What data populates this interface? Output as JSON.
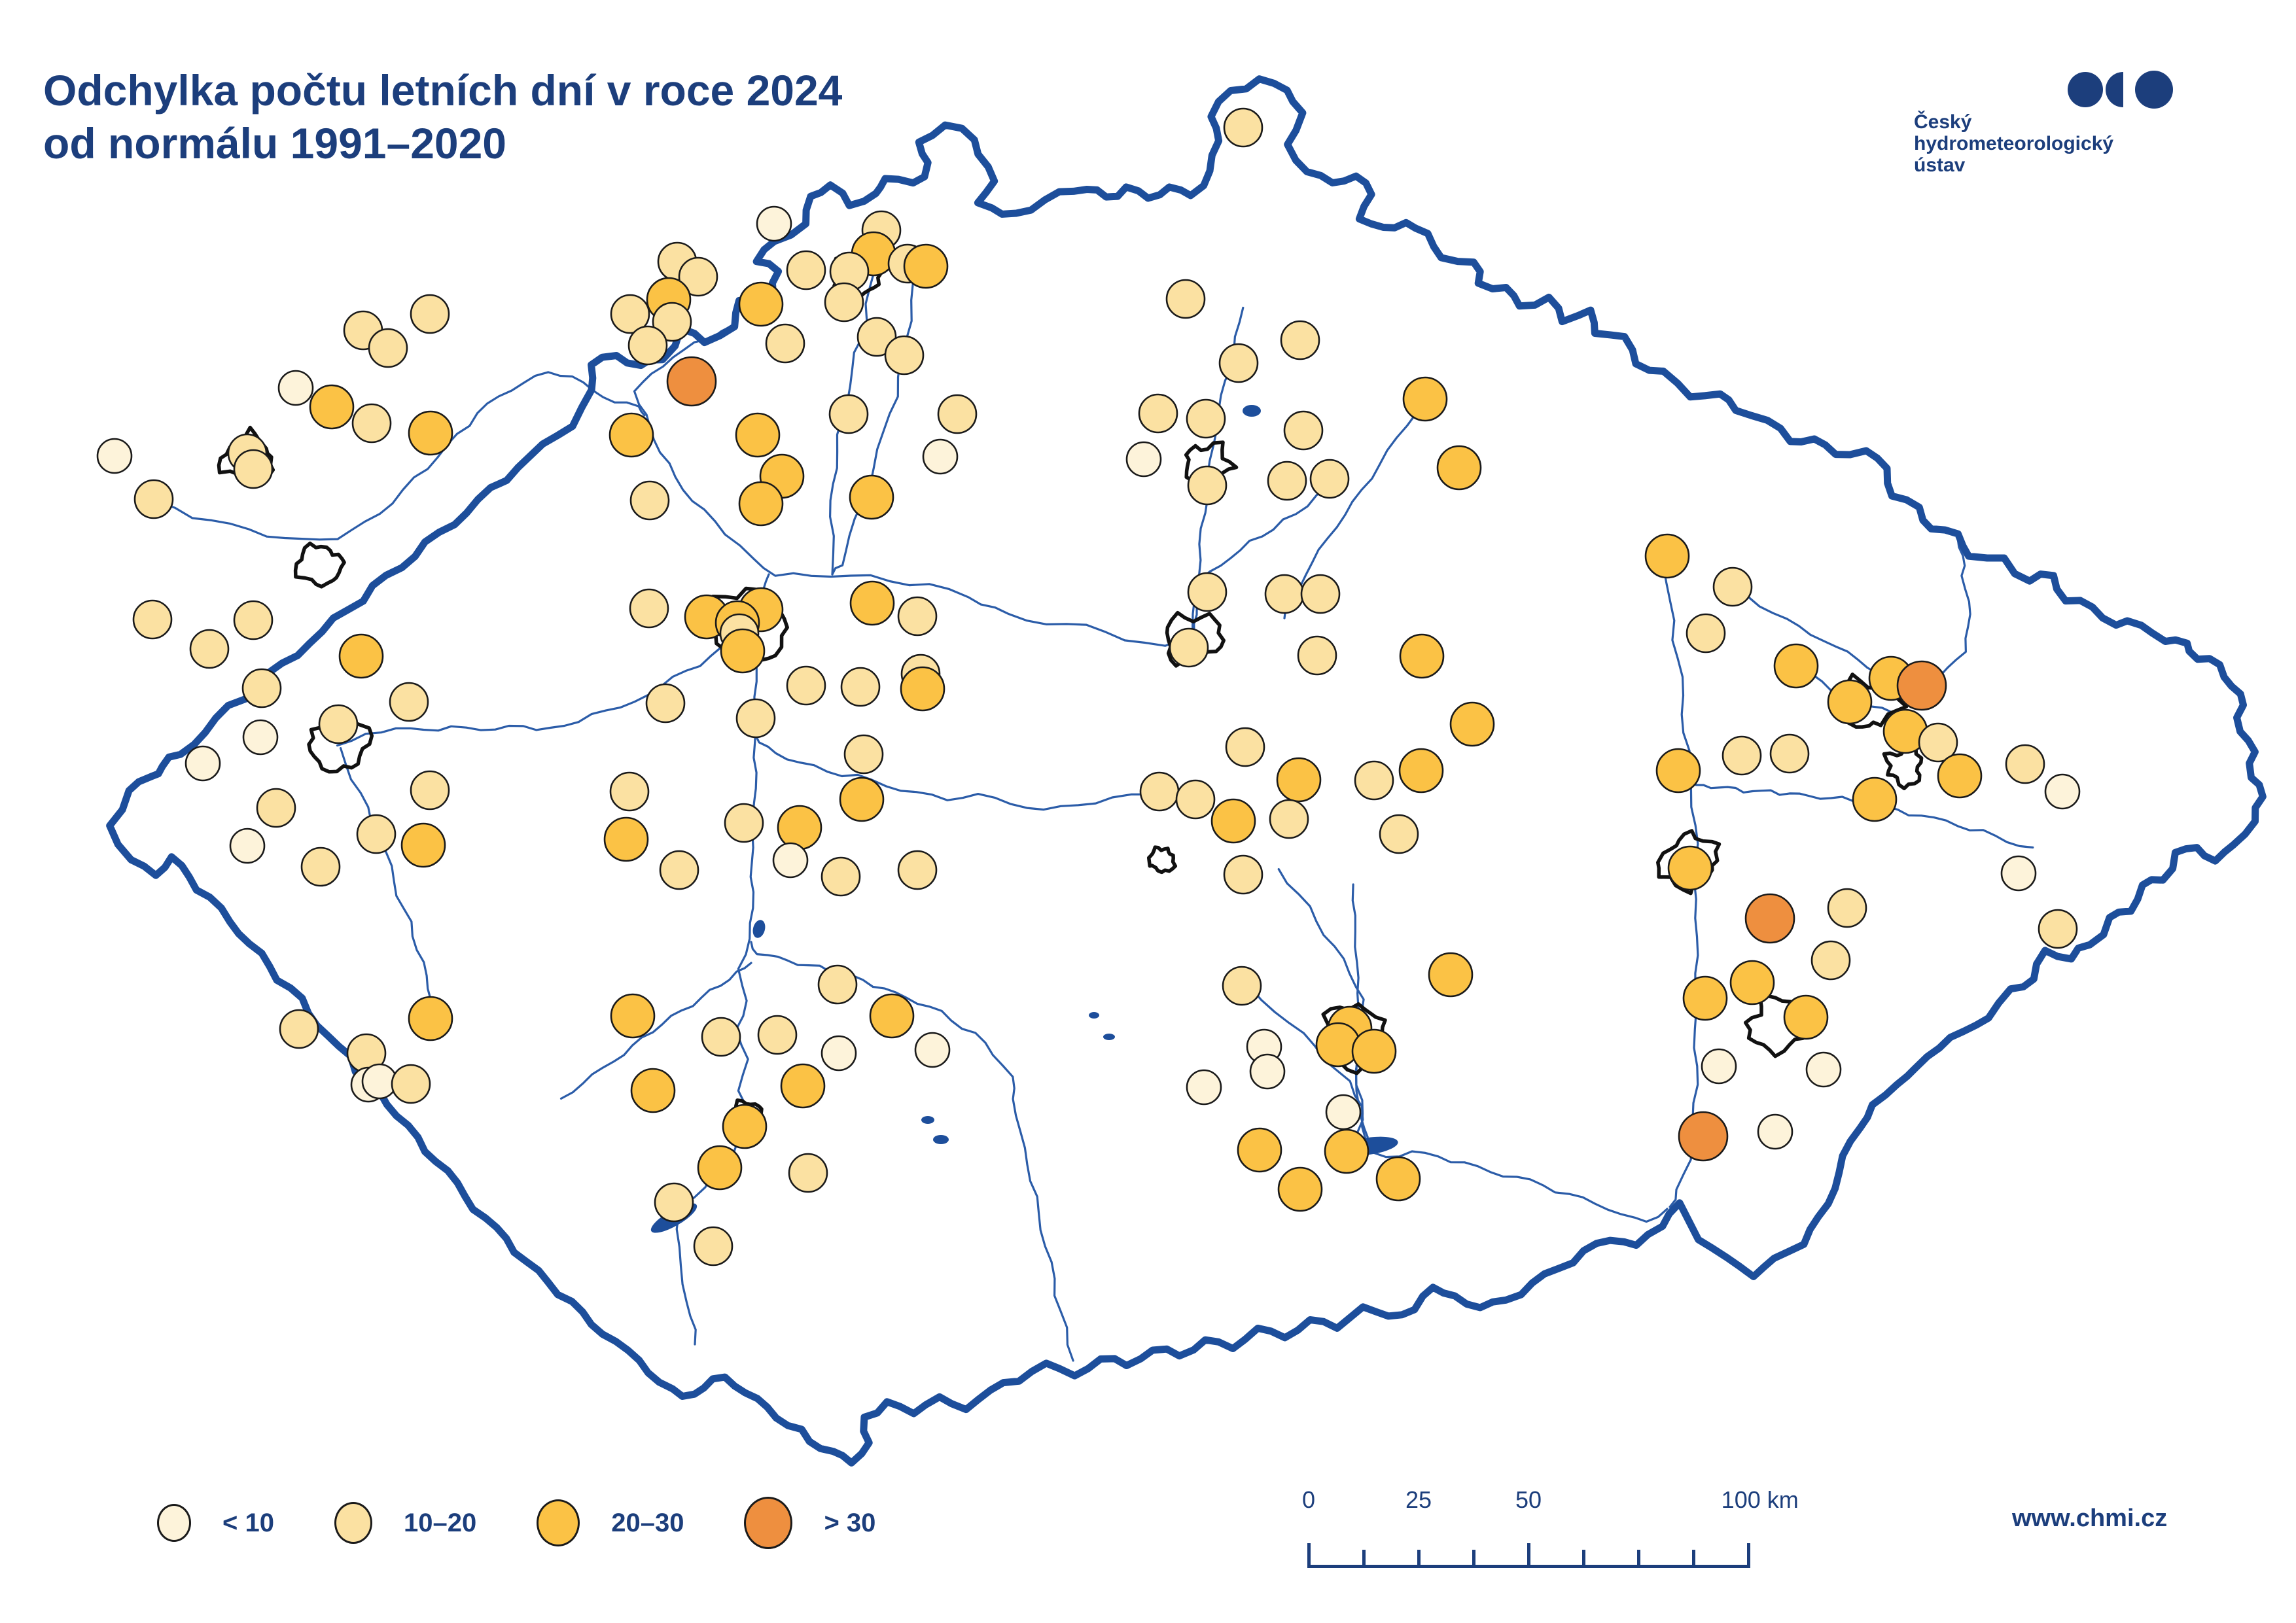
{
  "title": {
    "line1": "Odchylka počtu letních dní v roce 2024",
    "line2": "od normálu 1991–2020"
  },
  "logo": {
    "line1": "Český",
    "line2": "hydrometeorologický",
    "line3": "ústav"
  },
  "website": "www.chmi.cz",
  "legend": {
    "items": [
      {
        "label": "< 10",
        "color": "#fdf3da",
        "diameter": 52
      },
      {
        "label": "10–20",
        "color": "#fbe1a2",
        "diameter": 58
      },
      {
        "label": "20–30",
        "color": "#fbc245",
        "diameter": 66
      },
      {
        "label": "> 30",
        "color": "#ee8f3f",
        "diameter": 74
      }
    ]
  },
  "scalebar": {
    "unit": "km",
    "length_km": 100,
    "tick_km": [
      0,
      12.5,
      25,
      37.5,
      50,
      62.5,
      75,
      87.5,
      100
    ],
    "major_km": [
      0,
      50,
      100
    ],
    "labels": [
      {
        "km": 0,
        "text": "0"
      },
      {
        "km": 25,
        "text": "25"
      },
      {
        "km": 50,
        "text": "50"
      },
      {
        "km": 100,
        "text": "100 km"
      }
    ]
  },
  "colors": {
    "text_navy": "#1c3e7c",
    "border_navy": "#1d4e9b",
    "river_blue": "#2b5ca8",
    "dot_outline": "#1a1a1a",
    "category_fills": [
      "#fdf3da",
      "#fbe1a2",
      "#fbc245",
      "#ee8f3f"
    ]
  },
  "map": {
    "stations_format": "[x_px, y_px, category] with categories 1='< 10', 2='10–20', 3='20–30', 4='> 30'",
    "category_radius": {
      "1": 26,
      "2": 29,
      "3": 33,
      "4": 37
    },
    "stations": [
      [
        555,
        505,
        2
      ],
      [
        593,
        532,
        2
      ],
      [
        657,
        480,
        2
      ],
      [
        452,
        593,
        1
      ],
      [
        507,
        622,
        3
      ],
      [
        568,
        647,
        2
      ],
      [
        658,
        662,
        3
      ],
      [
        175,
        697,
        1
      ],
      [
        378,
        693,
        2
      ],
      [
        387,
        717,
        2
      ],
      [
        235,
        763,
        2
      ],
      [
        233,
        947,
        2
      ],
      [
        387,
        948,
        2
      ],
      [
        320,
        992,
        2
      ],
      [
        552,
        1003,
        3
      ],
      [
        400,
        1052,
        2
      ],
      [
        625,
        1073,
        2
      ],
      [
        517,
        1107,
        2
      ],
      [
        398,
        1127,
        1
      ],
      [
        310,
        1167,
        1
      ],
      [
        657,
        1208,
        2
      ],
      [
        422,
        1235,
        2
      ],
      [
        575,
        1275,
        2
      ],
      [
        647,
        1292,
        3
      ],
      [
        378,
        1293,
        1
      ],
      [
        490,
        1325,
        2
      ],
      [
        457,
        1573,
        2
      ],
      [
        658,
        1557,
        3
      ],
      [
        560,
        1610,
        2
      ],
      [
        563,
        1658,
        1
      ],
      [
        580,
        1653,
        1
      ],
      [
        628,
        1657,
        2
      ],
      [
        1183,
        342,
        1
      ],
      [
        1347,
        352,
        2
      ],
      [
        1335,
        388,
        3
      ],
      [
        1035,
        400,
        2
      ],
      [
        1232,
        413,
        2
      ],
      [
        1298,
        415,
        2
      ],
      [
        1387,
        403,
        2
      ],
      [
        1415,
        407,
        3
      ],
      [
        1067,
        423,
        2
      ],
      [
        1022,
        458,
        3
      ],
      [
        963,
        480,
        2
      ],
      [
        1027,
        492,
        2
      ],
      [
        1163,
        465,
        3
      ],
      [
        1290,
        462,
        2
      ],
      [
        990,
        528,
        2
      ],
      [
        1200,
        525,
        2
      ],
      [
        1340,
        515,
        2
      ],
      [
        1382,
        543,
        2
      ],
      [
        1057,
        583,
        4
      ],
      [
        1297,
        633,
        2
      ],
      [
        1463,
        633,
        2
      ],
      [
        965,
        665,
        3
      ],
      [
        1158,
        665,
        3
      ],
      [
        1437,
        698,
        1
      ],
      [
        1195,
        728,
        3
      ],
      [
        993,
        765,
        2
      ],
      [
        1163,
        770,
        3
      ],
      [
        1332,
        760,
        3
      ],
      [
        1900,
        195,
        2
      ],
      [
        1812,
        457,
        2
      ],
      [
        1987,
        520,
        2
      ],
      [
        1893,
        555,
        2
      ],
      [
        1770,
        632,
        2
      ],
      [
        1843,
        640,
        2
      ],
      [
        2178,
        610,
        3
      ],
      [
        1992,
        658,
        2
      ],
      [
        1748,
        702,
        1
      ],
      [
        1845,
        742,
        2
      ],
      [
        1967,
        735,
        2
      ],
      [
        2032,
        732,
        2
      ],
      [
        2230,
        715,
        3
      ],
      [
        2548,
        850,
        3
      ],
      [
        2648,
        897,
        2
      ],
      [
        992,
        930,
        2
      ],
      [
        1080,
        943,
        3
      ],
      [
        1163,
        932,
        3
      ],
      [
        1127,
        952,
        3
      ],
      [
        1130,
        968,
        2
      ],
      [
        1135,
        995,
        3
      ],
      [
        1333,
        922,
        3
      ],
      [
        1402,
        942,
        2
      ],
      [
        1407,
        1030,
        2
      ],
      [
        1410,
        1053,
        3
      ],
      [
        1232,
        1048,
        2
      ],
      [
        1315,
        1050,
        2
      ],
      [
        1017,
        1075,
        2
      ],
      [
        1155,
        1098,
        2
      ],
      [
        1320,
        1153,
        2
      ],
      [
        962,
        1210,
        2
      ],
      [
        957,
        1283,
        3
      ],
      [
        1317,
        1222,
        3
      ],
      [
        1137,
        1258,
        2
      ],
      [
        1222,
        1265,
        3
      ],
      [
        1208,
        1315,
        1
      ],
      [
        1285,
        1340,
        2
      ],
      [
        1038,
        1330,
        2
      ],
      [
        1402,
        1330,
        2
      ],
      [
        1845,
        905,
        2
      ],
      [
        1963,
        908,
        2
      ],
      [
        2018,
        908,
        2
      ],
      [
        1817,
        990,
        2
      ],
      [
        2013,
        1002,
        2
      ],
      [
        2173,
        1003,
        3
      ],
      [
        2250,
        1107,
        3
      ],
      [
        1903,
        1142,
        2
      ],
      [
        1985,
        1192,
        3
      ],
      [
        2100,
        1193,
        2
      ],
      [
        2172,
        1178,
        3
      ],
      [
        1772,
        1210,
        2
      ],
      [
        1827,
        1222,
        2
      ],
      [
        1885,
        1255,
        3
      ],
      [
        1970,
        1252,
        2
      ],
      [
        2138,
        1275,
        2
      ],
      [
        1900,
        1337,
        2
      ],
      [
        1280,
        1505,
        2
      ],
      [
        967,
        1553,
        3
      ],
      [
        1102,
        1585,
        2
      ],
      [
        1188,
        1582,
        2
      ],
      [
        1282,
        1610,
        1
      ],
      [
        1363,
        1553,
        3
      ],
      [
        1425,
        1605,
        1
      ],
      [
        1227,
        1660,
        3
      ],
      [
        998,
        1667,
        3
      ],
      [
        1138,
        1722,
        3
      ],
      [
        1100,
        1785,
        3
      ],
      [
        1235,
        1793,
        2
      ],
      [
        1030,
        1838,
        2
      ],
      [
        1090,
        1905,
        2
      ],
      [
        1898,
        1507,
        2
      ],
      [
        2217,
        1490,
        3
      ],
      [
        2063,
        1572,
        3
      ],
      [
        2045,
        1597,
        3
      ],
      [
        2100,
        1607,
        3
      ],
      [
        1932,
        1600,
        1
      ],
      [
        1937,
        1638,
        1
      ],
      [
        1840,
        1662,
        1
      ],
      [
        2053,
        1700,
        1
      ],
      [
        1925,
        1758,
        3
      ],
      [
        2058,
        1760,
        3
      ],
      [
        1987,
        1818,
        3
      ],
      [
        2137,
        1802,
        3
      ],
      [
        2607,
        968,
        2
      ],
      [
        2745,
        1018,
        3
      ],
      [
        2890,
        1037,
        3
      ],
      [
        2937,
        1048,
        4
      ],
      [
        2827,
        1073,
        3
      ],
      [
        2565,
        1178,
        3
      ],
      [
        2662,
        1155,
        2
      ],
      [
        2735,
        1152,
        2
      ],
      [
        2912,
        1118,
        3
      ],
      [
        2962,
        1135,
        2
      ],
      [
        2995,
        1186,
        3
      ],
      [
        2865,
        1222,
        3
      ],
      [
        3095,
        1168,
        2
      ],
      [
        3152,
        1210,
        1
      ],
      [
        2583,
        1327,
        3
      ],
      [
        2705,
        1404,
        4
      ],
      [
        2823,
        1388,
        2
      ],
      [
        2798,
        1468,
        2
      ],
      [
        3085,
        1335,
        1
      ],
      [
        3145,
        1420,
        2
      ],
      [
        2606,
        1526,
        3
      ],
      [
        2678,
        1502,
        3
      ],
      [
        2760,
        1555,
        3
      ],
      [
        2627,
        1630,
        1
      ],
      [
        2787,
        1635,
        1
      ],
      [
        2713,
        1730,
        1
      ],
      [
        2603,
        1737,
        4
      ]
    ]
  }
}
